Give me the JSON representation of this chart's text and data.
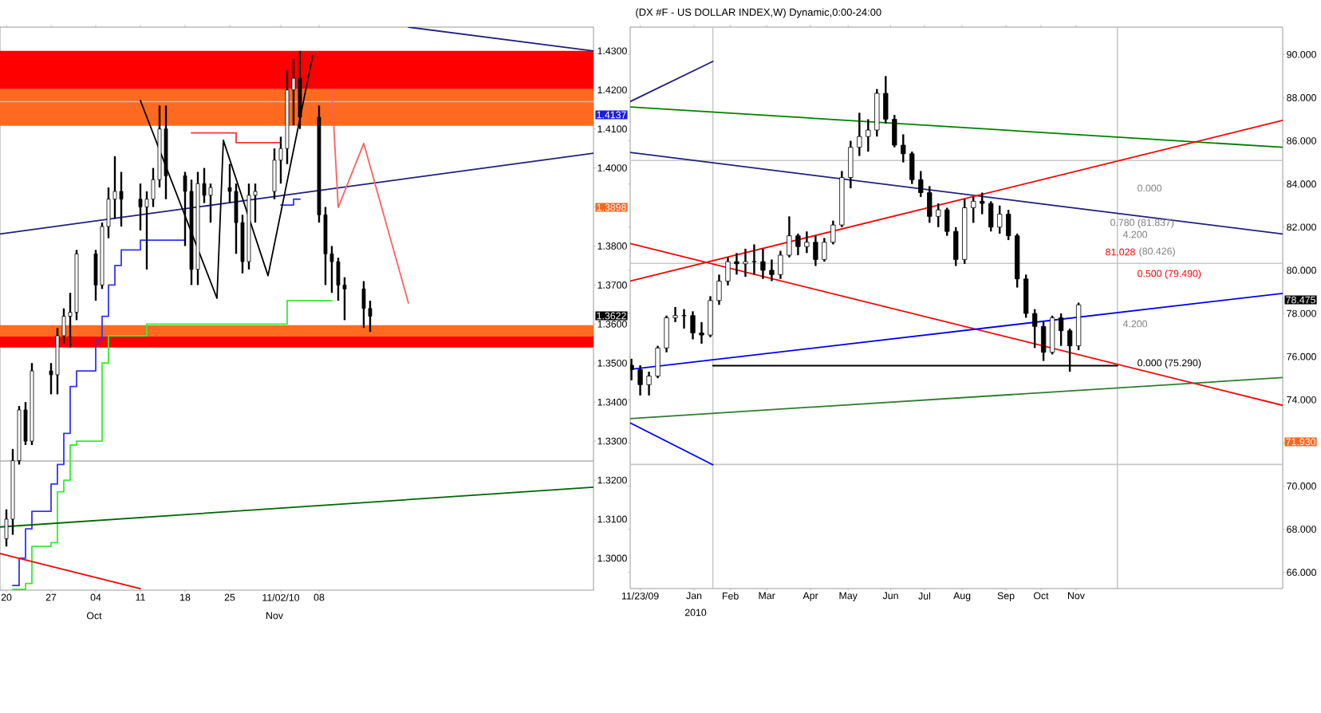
{
  "chart_data": [
    {
      "type": "candlestick",
      "x": [
        "2010-09-20",
        "2010-09-21",
        "2010-09-22",
        "2010-09-23",
        "2010-09-24",
        "2010-09-27",
        "2010-09-28",
        "2010-09-29",
        "2010-09-30",
        "2010-10-01",
        "2010-10-04",
        "2010-10-05",
        "2010-10-06",
        "2010-10-07",
        "2010-10-08",
        "2010-10-11",
        "2010-10-12",
        "2010-10-13",
        "2010-10-14",
        "2010-10-15",
        "2010-10-18",
        "2010-10-19",
        "2010-10-20",
        "2010-10-21",
        "2010-10-22",
        "2010-10-25",
        "2010-10-26",
        "2010-10-27",
        "2010-10-28",
        "2010-10-29",
        "2010-11-01",
        "2010-11-02",
        "2010-11-03",
        "2010-11-04",
        "2010-11-05",
        "2010-11-08",
        "2010-11-09",
        "2010-11-10",
        "2010-11-11",
        "2010-11-12",
        "2010-11-15",
        "2010-11-16"
      ],
      "ohlc": [
        [
          1.305,
          1.3125,
          1.303,
          1.31
        ],
        [
          1.31,
          1.328,
          1.306,
          1.325
        ],
        [
          1.325,
          1.339,
          1.324,
          1.338
        ],
        [
          1.338,
          1.34,
          1.329,
          1.33
        ],
        [
          1.33,
          1.35,
          1.329,
          1.348
        ],
        [
          1.348,
          1.35,
          1.342,
          1.347
        ],
        [
          1.347,
          1.359,
          1.342,
          1.357
        ],
        [
          1.357,
          1.364,
          1.355,
          1.362
        ],
        [
          1.362,
          1.368,
          1.354,
          1.363
        ],
        [
          1.363,
          1.379,
          1.361,
          1.378
        ],
        [
          1.378,
          1.379,
          1.366,
          1.37
        ],
        [
          1.37,
          1.386,
          1.369,
          1.385
        ],
        [
          1.385,
          1.395,
          1.382,
          1.392
        ],
        [
          1.392,
          1.403,
          1.387,
          1.394
        ],
        [
          1.394,
          1.399,
          1.385,
          1.392
        ],
        [
          1.392,
          1.396,
          1.384,
          1.39
        ],
        [
          1.39,
          1.394,
          1.374,
          1.392
        ],
        [
          1.392,
          1.4,
          1.39,
          1.397
        ],
        [
          1.397,
          1.416,
          1.395,
          1.41
        ],
        [
          1.41,
          1.416,
          1.392,
          1.398
        ],
        [
          1.398,
          1.399,
          1.38,
          1.394
        ],
        [
          1.394,
          1.397,
          1.37,
          1.374
        ],
        [
          1.374,
          1.399,
          1.37,
          1.396
        ],
        [
          1.396,
          1.4,
          1.391,
          1.393
        ],
        [
          1.393,
          1.396,
          1.386,
          1.395
        ],
        [
          1.395,
          1.401,
          1.391,
          1.394
        ],
        [
          1.394,
          1.396,
          1.378,
          1.386
        ],
        [
          1.386,
          1.388,
          1.373,
          1.376
        ],
        [
          1.376,
          1.396,
          1.374,
          1.393
        ],
        [
          1.393,
          1.396,
          1.386,
          1.394
        ],
        [
          1.394,
          1.405,
          1.392,
          1.402
        ],
        [
          1.402,
          1.408,
          1.396,
          1.405
        ],
        [
          1.405,
          1.425,
          1.401,
          1.42
        ],
        [
          1.42,
          1.428,
          1.411,
          1.423
        ],
        [
          1.423,
          1.43,
          1.41,
          1.413
        ],
        [
          1.413,
          1.416,
          1.386,
          1.388
        ],
        [
          1.388,
          1.39,
          1.37,
          1.378
        ],
        [
          1.378,
          1.38,
          1.368,
          1.376
        ],
        [
          1.376,
          1.377,
          1.366,
          1.37
        ],
        [
          1.37,
          1.372,
          1.361,
          1.369
        ],
        [
          1.369,
          1.371,
          1.359,
          1.364
        ],
        [
          1.364,
          1.366,
          1.358,
          1.362
        ]
      ],
      "series": [
        {
          "type": "step",
          "color": "#3333ff",
          "x": [
            "2010-09-21",
            "2010-09-22",
            "2010-09-23",
            "2010-09-24",
            "2010-09-27",
            "2010-09-28",
            "2010-09-29",
            "2010-09-30",
            "2010-10-01",
            "2010-10-04",
            "2010-10-05",
            "2010-10-06",
            "2010-10-07",
            "2010-10-08",
            "2010-10-11",
            "2010-10-18",
            "2010-10-19",
            "2010-11-02",
            "2010-11-04",
            "2010-11-05"
          ],
          "values": [
            1.293,
            1.3,
            1.3075,
            1.312,
            1.319,
            1.324,
            1.332,
            1.344,
            1.348,
            1.356,
            1.362,
            1.37,
            1.375,
            1.379,
            1.3815,
            1.3815,
            null,
            1.3905,
            1.392,
            1.392
          ]
        },
        {
          "type": "step",
          "color": "#33ee33",
          "x": [
            "2010-09-21",
            "2010-09-23",
            "2010-09-24",
            "2010-09-27",
            "2010-09-28",
            "2010-09-29",
            "2010-09-30",
            "2010-10-01",
            "2010-10-05",
            "2010-10-06",
            "2010-10-12",
            "2010-11-01",
            "2010-11-03",
            "2010-11-10"
          ],
          "values": [
            1.292,
            1.2935,
            1.303,
            1.304,
            1.317,
            1.32,
            1.329,
            1.33,
            1.35,
            1.357,
            1.36,
            1.36,
            1.366,
            1.366
          ]
        },
        {
          "type": "line",
          "color": "#202080",
          "x": [
            "2010-09-19",
            "2010-12-21"
          ],
          "values": [
            1.3831,
            1.4038
          ]
        },
        {
          "type": "line",
          "color": "#202080",
          "x": [
            "2010-11-22",
            "2010-12-21"
          ],
          "values": [
            1.4361,
            1.43
          ]
        },
        {
          "type": "line",
          "color": "#006600",
          "x": [
            "2010-09-19",
            "2010-12-21"
          ],
          "values": [
            1.308,
            1.3182
          ]
        },
        {
          "type": "line",
          "color": "#ff0000",
          "x": [
            "2010-09-19",
            "2010-10-11"
          ],
          "values": [
            1.3012,
            1.2922
          ]
        },
        {
          "type": "line",
          "color": "#000000",
          "x": [
            "2010-10-11",
            "2010-10-23",
            "2010-10-24",
            "2010-10-31",
            "2010-11-07"
          ],
          "values": [
            1.4173,
            1.3666,
            1.4071,
            1.3724,
            1.4288
          ]
        },
        {
          "type": "step",
          "color": "#ff3333",
          "x": [
            "2010-10-19",
            "2010-10-26",
            "2010-11-02"
          ],
          "values": [
            1.409,
            1.4065,
            1.4065
          ]
        },
        {
          "type": "line",
          "color": "#ff6060",
          "x": [
            "2010-11-10",
            "2010-11-11",
            "2010-11-15",
            "2010-11-22"
          ],
          "values": [
            1.4198,
            1.3899,
            1.4063,
            1.3654
          ]
        }
      ],
      "bands": [
        {
          "axis": "y",
          "from": 1.4202,
          "to": 1.43,
          "color": "#ff0000"
        },
        {
          "axis": "y",
          "from": 1.4108,
          "to": 1.4202,
          "color": "#ff6a20"
        },
        {
          "axis": "y",
          "from": 1.3568,
          "to": 1.3597,
          "color": "#ff6a20"
        },
        {
          "axis": "y",
          "from": 1.354,
          "to": 1.3568,
          "color": "#ff0000"
        }
      ],
      "ref_lines": [
        {
          "axis": "y",
          "value": 1.417,
          "color": "#b8c8d8"
        },
        {
          "axis": "y",
          "value": 1.3249,
          "color": "#b0b0b0"
        }
      ],
      "xlim": [
        "2010-09-19",
        "2010-12-21"
      ],
      "xticks": [
        {
          "value": "2010-09-20",
          "label": "20"
        },
        {
          "value": "2010-09-27",
          "label": "27"
        },
        {
          "value": "2010-10-04",
          "label": "04"
        },
        {
          "value": "2010-10-11",
          "label": "11"
        },
        {
          "value": "2010-10-18",
          "label": "18"
        },
        {
          "value": "2010-10-25",
          "label": "25"
        },
        {
          "value": "2010-11-02",
          "label": "11/02/10"
        },
        {
          "value": "2010-11-08",
          "label": "08"
        }
      ],
      "ylim": [
        1.2918,
        1.4361
      ],
      "yticks": [
        {
          "value": 1.3,
          "label": "1.3000"
        },
        {
          "value": 1.31,
          "label": "1.3100"
        },
        {
          "value": 1.32,
          "label": "1.3200"
        },
        {
          "value": 1.33,
          "label": "1.3300"
        },
        {
          "value": 1.34,
          "label": "1.3400"
        },
        {
          "value": 1.35,
          "label": "1.3500"
        },
        {
          "value": 1.36,
          "label": "1.3600"
        },
        {
          "value": 1.37,
          "label": "1.3700"
        },
        {
          "value": 1.38,
          "label": "1.3800"
        },
        {
          "value": 1.39,
          "label": null
        },
        {
          "value": 1.4,
          "label": "1.4000"
        },
        {
          "value": 1.41,
          "label": "1.4100"
        },
        {
          "value": 1.42,
          "label": "1.4200"
        },
        {
          "value": 1.43,
          "label": "1.4300"
        }
      ],
      "annotations": [
        "Oct",
        "Nov",
        "1.4137",
        "1.3898",
        "1.3622"
      ]
    },
    {
      "type": "candlestick",
      "title": "(DX #F - US DOLLAR INDEX,W) Dynamic,0:00-24:00",
      "x": [
        "2009-11-16",
        "2009-11-23",
        "2009-11-30",
        "2009-12-07",
        "2009-12-14",
        "2009-12-21",
        "2009-12-28",
        "2010-01-04",
        "2010-01-11",
        "2010-01-18",
        "2010-01-25",
        "2010-02-01",
        "2010-02-08",
        "2010-02-15",
        "2010-02-22",
        "2010-03-01",
        "2010-03-08",
        "2010-03-15",
        "2010-03-22",
        "2010-03-29",
        "2010-04-05",
        "2010-04-12",
        "2010-04-19",
        "2010-04-26",
        "2010-05-03",
        "2010-05-10",
        "2010-05-17",
        "2010-05-24",
        "2010-05-31",
        "2010-06-07",
        "2010-06-14",
        "2010-06-21",
        "2010-06-28",
        "2010-07-05",
        "2010-07-12",
        "2010-07-19",
        "2010-07-26",
        "2010-08-02",
        "2010-08-09",
        "2010-08-16",
        "2010-08-23",
        "2010-08-30",
        "2010-09-06",
        "2010-09-13",
        "2010-09-20",
        "2010-09-27",
        "2010-10-04",
        "2010-10-11",
        "2010-10-18",
        "2010-10-25",
        "2010-11-01",
        "2010-11-08"
      ],
      "ohlc": [
        [
          75.6,
          75.9,
          74.9,
          75.4
        ],
        [
          75.4,
          75.6,
          74.2,
          74.7
        ],
        [
          74.7,
          75.3,
          74.2,
          75.1
        ],
        [
          75.1,
          76.5,
          75.0,
          76.4
        ],
        [
          76.4,
          77.9,
          76.2,
          77.8
        ],
        [
          77.8,
          78.3,
          77.6,
          77.9
        ],
        [
          77.9,
          78.2,
          77.3,
          77.9
        ],
        [
          77.9,
          78.1,
          76.8,
          77.1
        ],
        [
          77.1,
          77.6,
          76.6,
          77.0
        ],
        [
          77.0,
          78.8,
          76.9,
          78.6
        ],
        [
          78.6,
          79.8,
          78.4,
          79.5
        ],
        [
          79.5,
          80.6,
          79.3,
          80.4
        ],
        [
          80.4,
          80.8,
          79.8,
          80.3
        ],
        [
          80.3,
          81.0,
          79.7,
          80.4
        ],
        [
          80.4,
          81.2,
          79.8,
          80.4
        ],
        [
          80.4,
          81.0,
          79.6,
          80.0
        ],
        [
          80.0,
          80.5,
          79.5,
          79.8
        ],
        [
          79.8,
          80.9,
          79.6,
          80.7
        ],
        [
          80.7,
          82.5,
          80.6,
          81.6
        ],
        [
          81.6,
          81.7,
          80.7,
          81.1
        ],
        [
          81.1,
          81.8,
          80.8,
          81.3
        ],
        [
          81.3,
          81.6,
          80.2,
          80.5
        ],
        [
          80.5,
          81.5,
          80.4,
          81.3
        ],
        [
          81.3,
          82.3,
          81.2,
          82.1
        ],
        [
          82.1,
          84.6,
          82.0,
          84.3
        ],
        [
          84.3,
          86.0,
          83.8,
          85.7
        ],
        [
          85.7,
          87.3,
          85.3,
          86.2
        ],
        [
          86.2,
          87.0,
          85.5,
          86.5
        ],
        [
          86.5,
          88.4,
          86.2,
          88.2
        ],
        [
          88.2,
          89.0,
          86.8,
          87.0
        ],
        [
          87.0,
          87.2,
          85.7,
          85.8
        ],
        [
          85.8,
          86.3,
          85.0,
          85.4
        ],
        [
          85.4,
          85.5,
          84.0,
          84.2
        ],
        [
          84.2,
          84.6,
          83.4,
          83.6
        ],
        [
          83.6,
          83.9,
          82.2,
          82.5
        ],
        [
          82.5,
          83.1,
          82.0,
          82.8
        ],
        [
          82.8,
          82.9,
          81.6,
          81.8
        ],
        [
          81.8,
          82.0,
          80.2,
          80.5
        ],
        [
          80.5,
          83.3,
          80.3,
          82.9
        ],
        [
          82.9,
          83.4,
          82.2,
          83.2
        ],
        [
          83.2,
          83.6,
          82.6,
          83.1
        ],
        [
          83.1,
          83.2,
          81.8,
          82.0
        ],
        [
          82.0,
          83.0,
          81.7,
          82.6
        ],
        [
          82.6,
          82.8,
          81.4,
          81.6
        ],
        [
          81.6,
          81.7,
          79.2,
          79.6
        ],
        [
          79.6,
          79.8,
          77.8,
          78.0
        ],
        [
          78.0,
          78.2,
          76.4,
          77.4
        ],
        [
          77.4,
          77.6,
          75.8,
          76.2
        ],
        [
          76.2,
          77.9,
          76.1,
          77.8
        ],
        [
          77.8,
          78.0,
          76.5,
          77.2
        ],
        [
          77.2,
          77.3,
          75.3,
          76.5
        ],
        [
          76.5,
          78.5,
          76.3,
          78.4
        ]
      ],
      "series": [
        {
          "type": "line",
          "color": "#008000",
          "x": [
            "2009-11-15",
            "2011-04-20"
          ],
          "values": [
            87.57,
            85.7
          ]
        },
        {
          "type": "line",
          "color": "#202080",
          "x": [
            "2009-11-15",
            "2011-04-20"
          ],
          "values": [
            85.46,
            81.68
          ]
        },
        {
          "type": "line",
          "color": "#202080",
          "x": [
            "2009-11-15",
            "2010-01-20"
          ],
          "values": [
            87.82,
            89.68
          ]
        },
        {
          "type": "line",
          "color": "#ff0000",
          "x": [
            "2009-11-15",
            "2011-04-20"
          ],
          "values": [
            79.5,
            86.95
          ]
        },
        {
          "type": "line",
          "color": "#ff0000",
          "x": [
            "2009-11-15",
            "2011-04-20"
          ],
          "values": [
            81.24,
            73.74
          ]
        },
        {
          "type": "line",
          "color": "#0000ff",
          "x": [
            "2009-11-15",
            "2011-04-20"
          ],
          "values": [
            75.41,
            78.93
          ]
        },
        {
          "type": "line",
          "color": "#0000ff",
          "x": [
            "2009-11-15",
            "2010-01-20"
          ],
          "values": [
            72.93,
            70.99
          ]
        },
        {
          "type": "line",
          "color": "#2e7d2e",
          "x": [
            "2009-11-15",
            "2011-04-20"
          ],
          "values": [
            73.13,
            75.03
          ]
        },
        {
          "type": "line",
          "color": "#000000",
          "x": [
            "2010-01-20",
            "2010-12-09"
          ],
          "values": [
            75.58,
            75.58
          ]
        }
      ],
      "ref_lines": [
        {
          "axis": "y",
          "value": 85.09,
          "color": "#c8c8c8"
        },
        {
          "axis": "y",
          "value": 80.32,
          "color": "#c8c8c8"
        },
        {
          "axis": "y",
          "value": 71.0,
          "color": "#c8c8c8"
        },
        {
          "axis": "x",
          "value": "2010-01-20",
          "color": "#c8c8c8"
        },
        {
          "axis": "x",
          "value": "2010-12-09",
          "color": "#c8c8c8"
        }
      ],
      "xlim": [
        "2009-11-15",
        "2011-04-20"
      ],
      "xticks": [
        {
          "value": "2009-11-23",
          "label": "11/23/09"
        },
        {
          "value": "2010-01-05",
          "label": "Jan"
        },
        {
          "value": "2010-02-03",
          "label": "Feb"
        },
        {
          "value": "2010-03-04",
          "label": "Mar"
        },
        {
          "value": "2010-04-08",
          "label": "Apr"
        },
        {
          "value": "2010-05-08",
          "label": "May"
        },
        {
          "value": "2010-06-11",
          "label": "Jun"
        },
        {
          "value": "2010-07-08",
          "label": "Jul"
        },
        {
          "value": "2010-08-07",
          "label": "Aug"
        },
        {
          "value": "2010-09-11",
          "label": "Sep"
        },
        {
          "value": "2010-10-09",
          "label": "Oct"
        },
        {
          "value": "2010-11-06",
          "label": "Nov"
        }
      ],
      "ylim": [
        65.25,
        91.27
      ],
      "yticks": [
        {
          "value": 66,
          "label": "66.000"
        },
        {
          "value": 68,
          "label": "68.000"
        },
        {
          "value": 70,
          "label": "70.000"
        },
        {
          "value": 72,
          "label": null
        },
        {
          "value": 74,
          "label": "74.000"
        },
        {
          "value": 76,
          "label": "76.000"
        },
        {
          "value": 78,
          "label": "78.000"
        },
        {
          "value": 80,
          "label": "80.000"
        },
        {
          "value": 82,
          "label": "82.000"
        },
        {
          "value": 84,
          "label": "84.000"
        },
        {
          "value": 86,
          "label": "86.000"
        },
        {
          "value": 88,
          "label": "88.000"
        },
        {
          "value": 90,
          "label": "90.000"
        }
      ],
      "annotations": [
        "2010",
        "78.475",
        "71.930",
        "0.000",
        "0.780 (81.837)",
        "4.200",
        "81.028",
        "(80.426)",
        "0.500 (79.490)",
        "4.200",
        "0.000 (75.290)"
      ]
    }
  ]
}
